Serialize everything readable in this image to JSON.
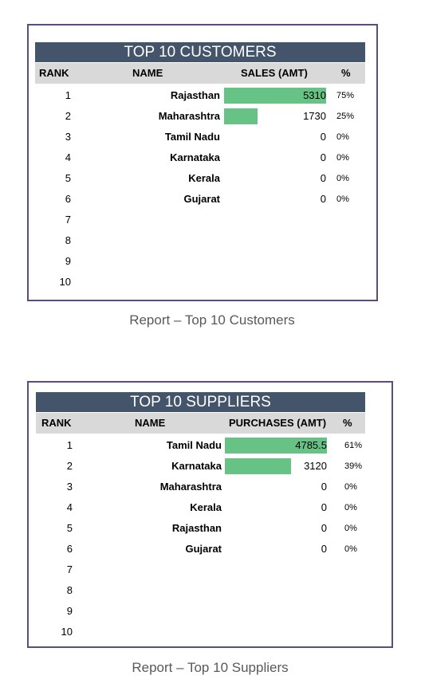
{
  "customers": {
    "title": "TOP 10 CUSTOMERS",
    "headers": {
      "rank": "RANK",
      "name": "NAME",
      "value": "SALES (AMT)",
      "pct": "%"
    },
    "max": 5310,
    "rows": [
      {
        "rank": "1",
        "name": "Rajasthan",
        "value": "5310",
        "num": 5310,
        "pct": "75%"
      },
      {
        "rank": "2",
        "name": "Maharashtra",
        "value": "1730",
        "num": 1730,
        "pct": "25%"
      },
      {
        "rank": "3",
        "name": "Tamil Nadu",
        "value": "0",
        "num": 0,
        "pct": "0%"
      },
      {
        "rank": "4",
        "name": "Karnataka",
        "value": "0",
        "num": 0,
        "pct": "0%"
      },
      {
        "rank": "5",
        "name": "Kerala",
        "value": "0",
        "num": 0,
        "pct": "0%"
      },
      {
        "rank": "6",
        "name": "Gujarat",
        "value": "0",
        "num": 0,
        "pct": "0%"
      },
      {
        "rank": "7",
        "name": "",
        "value": "",
        "num": 0,
        "pct": ""
      },
      {
        "rank": "8",
        "name": "",
        "value": "",
        "num": 0,
        "pct": ""
      },
      {
        "rank": "9",
        "name": "",
        "value": "",
        "num": 0,
        "pct": ""
      },
      {
        "rank": "10",
        "name": "",
        "value": "",
        "num": 0,
        "pct": ""
      }
    ],
    "caption": "Report – Top 10 Customers"
  },
  "suppliers": {
    "title": "TOP 10 SUPPLIERS",
    "headers": {
      "rank": "RANK",
      "name": "NAME",
      "value": "PURCHASES (AMT)",
      "pct": "%"
    },
    "max": 4785.5,
    "rows": [
      {
        "rank": "1",
        "name": "Tamil Nadu",
        "value": "4785.5",
        "num": 4785.5,
        "pct": "61%"
      },
      {
        "rank": "2",
        "name": "Karnataka",
        "value": "3120",
        "num": 3120,
        "pct": "39%"
      },
      {
        "rank": "3",
        "name": "Maharashtra",
        "value": "0",
        "num": 0,
        "pct": "0%"
      },
      {
        "rank": "4",
        "name": "Kerala",
        "value": "0",
        "num": 0,
        "pct": "0%"
      },
      {
        "rank": "5",
        "name": "Rajasthan",
        "value": "0",
        "num": 0,
        "pct": "0%"
      },
      {
        "rank": "6",
        "name": "Gujarat",
        "value": "0",
        "num": 0,
        "pct": "0%"
      },
      {
        "rank": "7",
        "name": "",
        "value": "",
        "num": 0,
        "pct": ""
      },
      {
        "rank": "8",
        "name": "",
        "value": "",
        "num": 0,
        "pct": ""
      },
      {
        "rank": "9",
        "name": "",
        "value": "",
        "num": 0,
        "pct": ""
      },
      {
        "rank": "10",
        "name": "",
        "value": "",
        "num": 0,
        "pct": ""
      }
    ],
    "caption": "Report – Top 10 Suppliers"
  },
  "colors": {
    "title_bar": "#44546a",
    "header_bg": "#d9d9d9",
    "bar": "#66c285",
    "frame": "#5e4d79"
  }
}
